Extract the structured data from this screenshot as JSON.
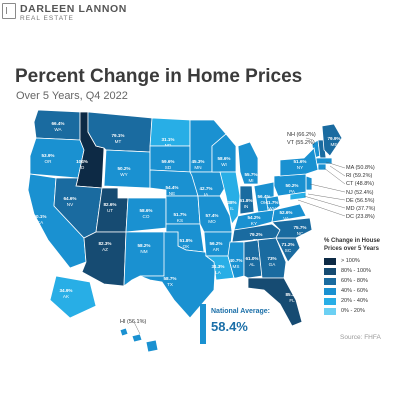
{
  "brand": {
    "name": "DARLEEN LANNON",
    "sub": "REAL ESTATE"
  },
  "title": "Percent Change in Home Prices",
  "subtitle": "Over 5 Years, Q4 2022",
  "national_average": {
    "label": "National Average:",
    "value": "58.4%"
  },
  "source": "Source: FHFA",
  "legend": {
    "title": "% Change in House Prices over 5 Years",
    "items": [
      {
        "label": "> 100%",
        "color": "#0d2a45"
      },
      {
        "label": "80% - 100%",
        "color": "#164b72"
      },
      {
        "label": "60% - 80%",
        "color": "#1a6ba0"
      },
      {
        "label": "40% - 60%",
        "color": "#1a91d1"
      },
      {
        "label": "20% - 40%",
        "color": "#28aee6"
      },
      {
        "label": "0% - 20%",
        "color": "#6cd0f3"
      }
    ]
  },
  "callouts_ne_top": [
    "NH (66.2%)",
    "VT (55.2%)"
  ],
  "callouts_ne_right": [
    "MA (50.8%)",
    "RI (59.2%)",
    "CT (48.8%)",
    "NJ (52.4%)",
    "DE (56.5%)",
    "MD (37.7%)",
    "DC (23.8%)"
  ],
  "hawaii": "HI (56.1%)",
  "states": [
    {
      "abbr": "WA",
      "value": "66.4%",
      "color": "#1a6ba0"
    },
    {
      "abbr": "OR",
      "value": "53.9%",
      "color": "#1a91d1"
    },
    {
      "abbr": "CA",
      "value": "50.1%",
      "color": "#1a91d1"
    },
    {
      "abbr": "ID",
      "value": "104%",
      "color": "#0d2a45"
    },
    {
      "abbr": "NV",
      "value": "64.6%",
      "color": "#1a6ba0"
    },
    {
      "abbr": "MT",
      "value": "79.1%",
      "color": "#1a6ba0"
    },
    {
      "abbr": "WY",
      "value": "50.2%",
      "color": "#1a91d1"
    },
    {
      "abbr": "UT",
      "value": "82.6%",
      "color": "#164b72"
    },
    {
      "abbr": "AZ",
      "value": "82.3%",
      "color": "#164b72"
    },
    {
      "abbr": "CO",
      "value": "58.6%",
      "color": "#1a91d1"
    },
    {
      "abbr": "NM",
      "value": "58.2%",
      "color": "#1a91d1"
    },
    {
      "abbr": "ND",
      "value": "31.1%",
      "color": "#28aee6"
    },
    {
      "abbr": "SD",
      "value": "59.6%",
      "color": "#1a91d1"
    },
    {
      "abbr": "NE",
      "value": "54.4%",
      "color": "#1a91d1"
    },
    {
      "abbr": "KS",
      "value": "51.7%",
      "color": "#1a91d1"
    },
    {
      "abbr": "OK",
      "value": "51.8%",
      "color": "#1a91d1"
    },
    {
      "abbr": "TX",
      "value": "58.7%",
      "color": "#1a91d1"
    },
    {
      "abbr": "MN",
      "value": "45.3%",
      "color": "#1a91d1"
    },
    {
      "abbr": "IA",
      "value": "42.7%",
      "color": "#1a91d1"
    },
    {
      "abbr": "MO",
      "value": "57.4%",
      "color": "#1a91d1"
    },
    {
      "abbr": "AR",
      "value": "56.2%",
      "color": "#1a91d1"
    },
    {
      "abbr": "LA",
      "value": "31.3%",
      "color": "#28aee6"
    },
    {
      "abbr": "WI",
      "value": "58.6%",
      "color": "#1a91d1"
    },
    {
      "abbr": "IL",
      "value": "38%",
      "color": "#28aee6"
    },
    {
      "abbr": "MI",
      "value": "55.7%",
      "color": "#1a91d1"
    },
    {
      "abbr": "IN",
      "value": "61.8%",
      "color": "#1a6ba0"
    },
    {
      "abbr": "OH",
      "value": "56.4%",
      "color": "#1a91d1"
    },
    {
      "abbr": "KY",
      "value": "54.2%",
      "color": "#1a91d1"
    },
    {
      "abbr": "TN",
      "value": "79.2%",
      "color": "#1a6ba0"
    },
    {
      "abbr": "MS",
      "value": "40.7%",
      "color": "#1a91d1"
    },
    {
      "abbr": "AL",
      "value": "61.0%",
      "color": "#1a6ba0"
    },
    {
      "abbr": "GA",
      "value": "73%",
      "color": "#1a6ba0"
    },
    {
      "abbr": "FL",
      "value": "85.1%",
      "color": "#164b72"
    },
    {
      "abbr": "SC",
      "value": "71.2%",
      "color": "#1a6ba0"
    },
    {
      "abbr": "NC",
      "value": "75.7%",
      "color": "#1a6ba0"
    },
    {
      "abbr": "VA",
      "value": "52.6%",
      "color": "#1a91d1"
    },
    {
      "abbr": "WV",
      "value": "41.7%",
      "color": "#1a91d1"
    },
    {
      "abbr": "PA",
      "value": "50.2%",
      "color": "#1a91d1"
    },
    {
      "abbr": "NY",
      "value": "51.6%",
      "color": "#1a91d1"
    },
    {
      "abbr": "ME",
      "value": "79.9%",
      "color": "#1a6ba0"
    },
    {
      "abbr": "AK",
      "value": "34.9%",
      "color": "#28aee6"
    }
  ]
}
